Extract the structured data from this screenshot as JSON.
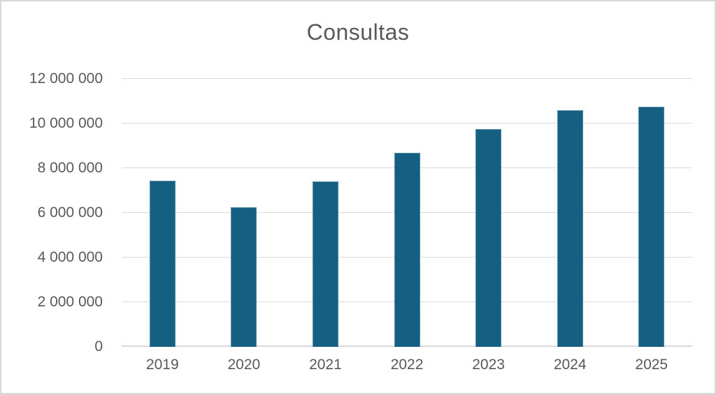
{
  "chart_data": {
    "type": "bar",
    "title": "Consultas",
    "categories": [
      "2019",
      "2020",
      "2021",
      "2022",
      "2023",
      "2024",
      "2025"
    ],
    "values": [
      7450000,
      6250000,
      7400000,
      8700000,
      9750000,
      10600000,
      10750000
    ],
    "xlabel": "",
    "ylabel": "",
    "ylim": [
      0,
      12000000
    ],
    "grid": "horizontal",
    "legend": "none",
    "y_ticks": [
      {
        "value": 0,
        "label": "0"
      },
      {
        "value": 2000000,
        "label": "2 000 000"
      },
      {
        "value": 4000000,
        "label": "4 000 000"
      },
      {
        "value": 6000000,
        "label": "6 000 000"
      },
      {
        "value": 8000000,
        "label": "8 000 000"
      },
      {
        "value": 10000000,
        "label": "10 000 000"
      },
      {
        "value": 12000000,
        "label": "12 000 000"
      }
    ],
    "colors": {
      "bar": "#156082",
      "bar_edge": "#4d88a5",
      "gridline": "#D9D9D9",
      "axis_text": "#595959",
      "title_text": "#595959",
      "background": "#FFFFFF",
      "chart_border": "#D8D8D8"
    }
  }
}
